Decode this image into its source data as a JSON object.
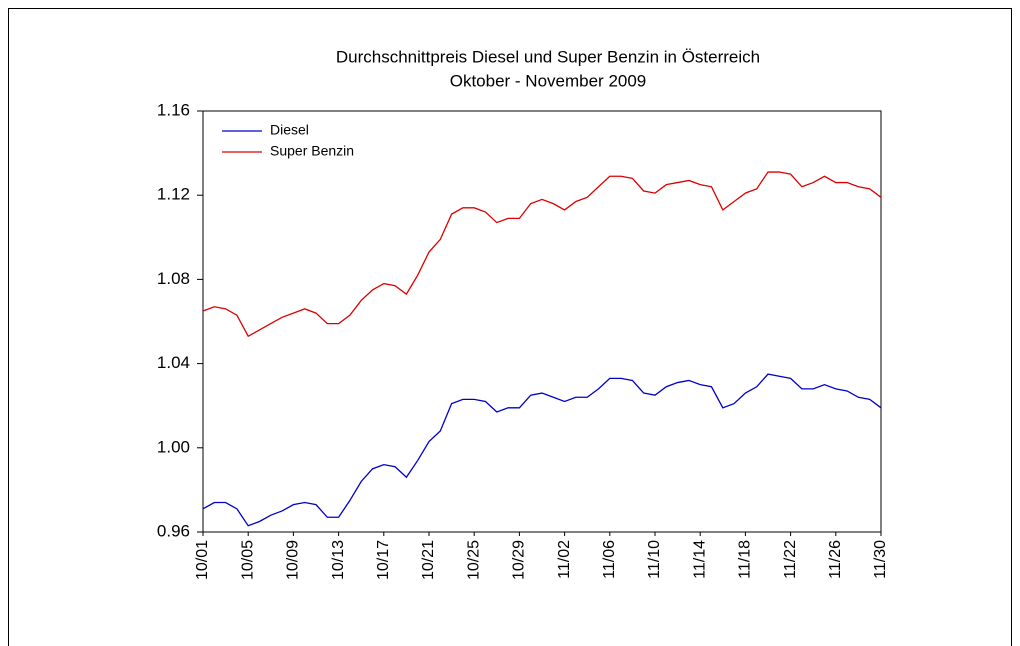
{
  "chart_data": {
    "type": "line",
    "title": "Durchschnittpreis Diesel und Super Benzin in Österreich",
    "subtitle": "Oktober - November 2009",
    "categories": [
      "10/01",
      null,
      null,
      null,
      "10/05",
      null,
      null,
      null,
      "10/09",
      null,
      null,
      null,
      "10/13",
      null,
      null,
      null,
      "10/17",
      null,
      null,
      null,
      "10/21",
      null,
      null,
      null,
      "10/25",
      null,
      null,
      null,
      "10/29",
      null,
      null,
      null,
      "11/02",
      null,
      null,
      null,
      "11/06",
      null,
      null,
      null,
      "11/10",
      null,
      null,
      null,
      "11/14",
      null,
      null,
      null,
      "11/18",
      null,
      null,
      null,
      "11/22",
      null,
      null,
      null,
      "11/26",
      null,
      null,
      null,
      "11/30"
    ],
    "series": [
      {
        "name": "Diesel",
        "color": "#0000cc",
        "values": [
          0.971,
          0.974,
          0.974,
          0.971,
          0.963,
          0.965,
          0.968,
          0.97,
          0.973,
          0.974,
          0.973,
          0.967,
          0.967,
          0.975,
          0.984,
          0.99,
          0.992,
          0.991,
          0.986,
          0.994,
          1.003,
          1.008,
          1.021,
          1.023,
          1.023,
          1.022,
          1.017,
          1.019,
          1.019,
          1.025,
          1.026,
          1.024,
          1.022,
          1.024,
          1.024,
          1.028,
          1.033,
          1.033,
          1.032,
          1.026,
          1.025,
          1.029,
          1.031,
          1.032,
          1.03,
          1.029,
          1.019,
          1.021,
          1.026,
          1.029,
          1.035,
          1.034,
          1.033,
          1.028,
          1.028,
          1.03,
          1.028,
          1.027,
          1.024,
          1.023,
          1.019
        ]
      },
      {
        "name": "Super Benzin",
        "color": "#dd0000",
        "values": [
          1.065,
          1.067,
          1.066,
          1.063,
          1.053,
          1.056,
          1.059,
          1.062,
          1.064,
          1.066,
          1.064,
          1.059,
          1.059,
          1.063,
          1.07,
          1.075,
          1.078,
          1.077,
          1.073,
          1.082,
          1.093,
          1.099,
          1.111,
          1.114,
          1.114,
          1.112,
          1.107,
          1.109,
          1.109,
          1.116,
          1.118,
          1.116,
          1.113,
          1.117,
          1.119,
          1.124,
          1.129,
          1.129,
          1.128,
          1.122,
          1.121,
          1.125,
          1.126,
          1.127,
          1.125,
          1.124,
          1.113,
          1.117,
          1.121,
          1.123,
          1.131,
          1.131,
          1.13,
          1.124,
          1.126,
          1.129,
          1.126,
          1.126,
          1.124,
          1.123,
          1.119
        ]
      }
    ],
    "ylim": [
      0.96,
      1.16
    ],
    "yticks": [
      {
        "value": 0.96,
        "label": "0.96"
      },
      {
        "value": 1.0,
        "label": "1.00"
      },
      {
        "value": 1.04,
        "label": "1.04"
      },
      {
        "value": 1.08,
        "label": "1.08"
      },
      {
        "value": 1.12,
        "label": "1.12"
      },
      {
        "value": 1.16,
        "label": "1.16"
      }
    ],
    "legend": "upper left",
    "grid": false
  }
}
